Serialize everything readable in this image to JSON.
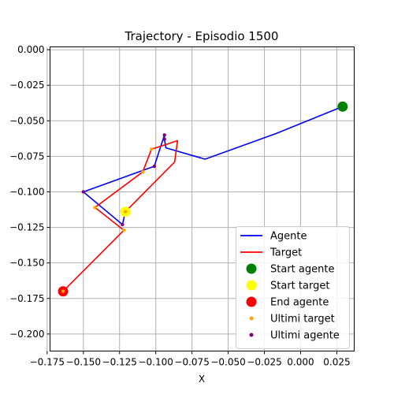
{
  "chart_data": {
    "type": "line",
    "title": "Trajectory - Episodio 1500",
    "xlabel": "X",
    "ylabel": "",
    "xlim": [
      -0.173,
      0.037
    ],
    "ylim": [
      -0.212,
      0.002
    ],
    "x_ticks": [
      -0.175,
      -0.15,
      -0.125,
      -0.1,
      -0.075,
      -0.05,
      -0.025,
      0.0,
      0.025
    ],
    "x_tick_labels": [
      "−0.175",
      "−0.150",
      "−0.125",
      "−0.100",
      "−0.075",
      "−0.050",
      "−0.025",
      "0.000",
      "0.025"
    ],
    "y_ticks": [
      0.0,
      -0.025,
      -0.05,
      -0.075,
      -0.1,
      -0.125,
      -0.15,
      -0.175,
      -0.2
    ],
    "y_tick_labels": [
      "0.000",
      "−0.025",
      "−0.050",
      "−0.075",
      "−0.100",
      "−0.125",
      "−0.150",
      "−0.175",
      "−0.200"
    ],
    "grid": true,
    "legend_position": "bottom-right",
    "series": [
      {
        "name": "Agente",
        "color": "#0000ff",
        "kind": "line",
        "x": [
          0.029,
          -0.017,
          -0.066,
          -0.093,
          -0.094,
          -0.094,
          -0.101,
          -0.15,
          -0.123,
          -0.121
        ],
        "y": [
          -0.04,
          -0.059,
          -0.077,
          -0.069,
          -0.063,
          -0.06,
          -0.082,
          -0.1,
          -0.123,
          -0.114
        ]
      },
      {
        "name": "Target",
        "color": "#ff0000",
        "kind": "line",
        "x": [
          -0.121,
          -0.087,
          -0.085,
          -0.103,
          -0.109,
          -0.142,
          -0.122,
          -0.164
        ],
        "y": [
          -0.114,
          -0.079,
          -0.064,
          -0.07,
          -0.086,
          -0.111,
          -0.127,
          -0.17
        ]
      }
    ],
    "markers": [
      {
        "name": "Start agente",
        "color": "#008000",
        "x": 0.029,
        "y": -0.04
      },
      {
        "name": "Start target",
        "color": "#ffff00",
        "x": -0.121,
        "y": -0.114
      },
      {
        "name": "End agente",
        "color": "#ff0000",
        "x": -0.164,
        "y": -0.17
      }
    ],
    "recent_points": [
      {
        "name": "Ultimi target",
        "color": "#ffa500",
        "x": [
          -0.164,
          -0.122,
          -0.142,
          -0.109,
          -0.103,
          -0.121
        ],
        "y": [
          -0.17,
          -0.127,
          -0.111,
          -0.086,
          -0.07,
          -0.114
        ]
      },
      {
        "name": "Ultimi agente",
        "color": "#800080",
        "x": [
          -0.094,
          -0.094,
          -0.101,
          -0.15,
          -0.123
        ],
        "y": [
          -0.063,
          -0.06,
          -0.082,
          -0.1,
          -0.123
        ]
      }
    ]
  }
}
